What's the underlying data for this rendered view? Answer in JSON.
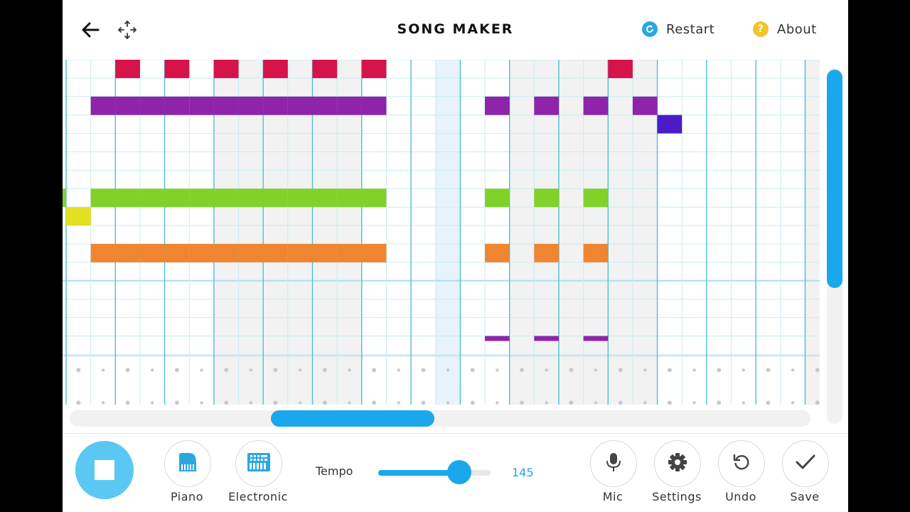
{
  "app": {
    "title": "SONG MAKER",
    "restart_label": "Restart",
    "about_label": "About",
    "back_icon": "back-arrow-icon",
    "move_icon": "move-icon"
  },
  "grid": {
    "columns": 31,
    "melody_rows": 15,
    "highlighted_column": 15,
    "notes": [
      {
        "row": 0,
        "cols": [
          2,
          4,
          6,
          8,
          10,
          12,
          22
        ],
        "color": "#d6134a"
      },
      {
        "row": 2,
        "cols": [
          1,
          2,
          3,
          4,
          5,
          6,
          7,
          8,
          9,
          10,
          11,
          12,
          17,
          19,
          21,
          23
        ],
        "color": "#8e24aa"
      },
      {
        "row": 3,
        "cols": [
          24
        ],
        "color": "#4a1cc8"
      },
      {
        "row": 7,
        "cols": [
          1,
          2,
          3,
          4,
          5,
          6,
          7,
          8,
          9,
          10,
          11,
          12,
          17,
          19,
          21
        ],
        "color": "#82d12a"
      },
      {
        "row": 8,
        "cols": [
          0
        ],
        "color": "#e3e021"
      },
      {
        "row": 10,
        "cols": [
          1,
          2,
          3,
          4,
          5,
          6,
          7,
          8,
          9,
          10,
          11,
          12,
          17,
          19,
          21
        ],
        "color": "#ef8530"
      },
      {
        "row": 15,
        "cols": [
          17,
          19,
          21
        ],
        "color": "#8e24aa"
      }
    ],
    "partial_notes": [
      {
        "row": 7,
        "col": -1,
        "color": "#82d12a"
      }
    ]
  },
  "tempo": {
    "label": "Tempo",
    "value": "145",
    "level": 0.72
  },
  "instruments": [
    {
      "label": "Piano",
      "icon": "piano-icon"
    },
    {
      "label": "Electronic",
      "icon": "electronic-keyboard-icon"
    }
  ],
  "actions": [
    {
      "label": "Mic",
      "icon": "mic-icon"
    },
    {
      "label": "Settings",
      "icon": "gear-icon"
    },
    {
      "label": "Undo",
      "icon": "undo-icon"
    },
    {
      "label": "Save",
      "icon": "check-icon"
    }
  ],
  "colors": {
    "accent": "#1aa7ec",
    "play_button": "#5bc8f3",
    "restart_icon": "#29a8e0",
    "about_icon": "#f5c22a",
    "grid_line": "#c8ecf3",
    "bar_line": "#4cc0d6",
    "shaded_column": "#f2f2f2",
    "highlight_column": "#e6f4fa"
  },
  "scroll": {
    "horizontal_position": 0.28,
    "vertical_position": 0.0
  }
}
